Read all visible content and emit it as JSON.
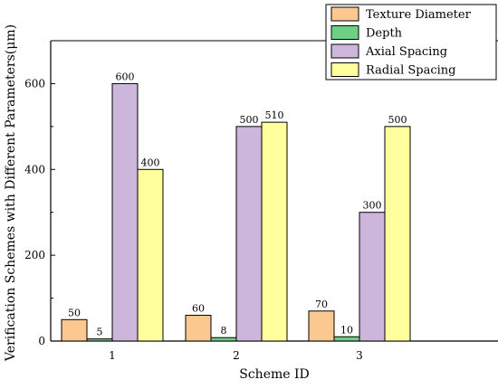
{
  "chart_data": {
    "type": "bar",
    "title": "",
    "xlabel": "Scheme ID",
    "ylabel": "Verification Schemes with Different Parameters(μm)",
    "categories": [
      "1",
      "2",
      "3"
    ],
    "ylim": [
      0,
      700
    ],
    "yticks": [
      0,
      200,
      400,
      600
    ],
    "grid": false,
    "legend_position": "top-right",
    "series": [
      {
        "name": "Texture Diameter",
        "color": "#fbc98f",
        "values": [
          50,
          60,
          70
        ],
        "labels": [
          "50",
          "60",
          "70"
        ]
      },
      {
        "name": "Depth",
        "color": "#6fcf85",
        "values": [
          5,
          8,
          10
        ],
        "labels": [
          "5",
          "8",
          "10"
        ]
      },
      {
        "name": "Axial Spacing",
        "color": "#cdb6dc",
        "values": [
          600,
          500,
          300
        ],
        "labels": [
          "600",
          "500",
          "300"
        ]
      },
      {
        "name": "Radial Spacing",
        "color": "#ffff9e",
        "values": [
          400,
          510,
          500
        ],
        "labels": [
          "400",
          "510",
          "500"
        ]
      }
    ]
  }
}
